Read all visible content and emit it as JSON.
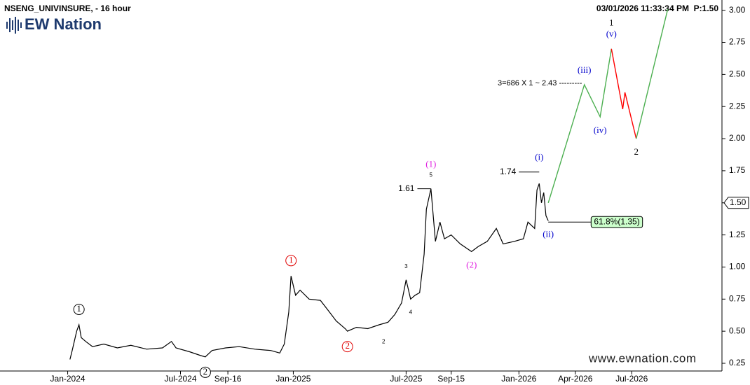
{
  "header": {
    "symbol": "NSENG_UNIVINSURE, - 16 hour",
    "timestamp": "03/01/2026 11:33:34 PM",
    "last": "P:1.50",
    "logo": "EW Nation",
    "website": "www.ewnation.com"
  },
  "chart_data": {
    "type": "line",
    "xlim": [
      2023.7,
      2026.9
    ],
    "xticks": [
      {
        "value": 2024.0,
        "label": "Jan-2024"
      },
      {
        "value": 2024.5,
        "label": "Jul-2024"
      },
      {
        "value": 2024.71,
        "label": "Sep-16"
      },
      {
        "value": 2025.0,
        "label": "Jan-2025"
      },
      {
        "value": 2025.5,
        "label": "Jul-2025"
      },
      {
        "value": 2025.7,
        "label": "Sep-15"
      },
      {
        "value": 2026.0,
        "label": "Jan-2026"
      },
      {
        "value": 2026.25,
        "label": "Apr-2026"
      },
      {
        "value": 2026.5,
        "label": "Jul-2026"
      }
    ],
    "ylim": [
      0.19,
      3.08
    ],
    "yticks": [
      0.25,
      {
        "value": 0.5,
        "label": "0.50"
      },
      0.75,
      {
        "value": 1,
        "label": "1.00"
      },
      1.25,
      {
        "value": 1.5,
        "label": "1.50"
      },
      1.75,
      {
        "value": 2,
        "label": "2.00"
      },
      2.25,
      {
        "value": 2.5,
        "label": "2.50"
      },
      2.75,
      {
        "value": 3,
        "label": "3.00"
      }
    ],
    "series": [
      {
        "color": "#000000",
        "x": [
          2024.01,
          2024.02,
          2024.04,
          2024.05,
          2024.06,
          2024.08,
          2024.11,
          2024.16,
          2024.22,
          2024.28,
          2024.35,
          2024.42,
          2024.46,
          2024.48,
          2024.54,
          2024.59,
          2024.61,
          2024.64,
          2024.7,
          2024.76,
          2024.83,
          2024.9,
          2024.94,
          2024.96,
          2024.98,
          2024.99,
          2025.01,
          2025.03,
          2025.07,
          2025.12,
          2025.16,
          2025.19,
          2025.23,
          2025.24,
          2025.28,
          2025.33,
          2025.38,
          2025.42,
          2025.45,
          2025.48,
          2025.5,
          2025.52,
          2025.54,
          2025.56,
          2025.58,
          2025.59,
          2025.61,
          2025.63,
          2025.65,
          2025.67,
          2025.7,
          2025.74,
          2025.79,
          2025.82,
          2025.86,
          2025.9,
          2025.93,
          2025.98,
          2026.02,
          2026.04,
          2026.07,
          2026.08,
          2026.09,
          2026.1,
          2026.11,
          2026.12,
          2026.13
        ],
        "values": [
          0.28,
          0.35,
          0.5,
          0.55,
          0.45,
          0.42,
          0.38,
          0.4,
          0.37,
          0.39,
          0.36,
          0.37,
          0.42,
          0.37,
          0.34,
          0.31,
          0.3,
          0.35,
          0.37,
          0.38,
          0.36,
          0.35,
          0.33,
          0.4,
          0.65,
          0.93,
          0.78,
          0.82,
          0.75,
          0.74,
          0.65,
          0.58,
          0.52,
          0.5,
          0.53,
          0.52,
          0.55,
          0.57,
          0.63,
          0.72,
          0.9,
          0.75,
          0.78,
          0.8,
          1.1,
          1.45,
          1.61,
          1.2,
          1.35,
          1.22,
          1.25,
          1.18,
          1.12,
          1.16,
          1.2,
          1.3,
          1.18,
          1.2,
          1.22,
          1.35,
          1.3,
          1.6,
          1.65,
          1.5,
          1.58,
          1.4,
          1.36
        ]
      },
      {
        "color": "#4caf50",
        "x": [
          2026.13,
          2026.29,
          2026.36,
          2026.41
        ],
        "values": [
          1.5,
          2.42,
          2.17,
          2.7
        ]
      },
      {
        "color": "#ff0000",
        "x": [
          2026.41,
          2026.46,
          2026.47,
          2026.52
        ],
        "values": [
          2.7,
          2.23,
          2.36,
          2.0
        ]
      },
      {
        "color": "#4caf50",
        "x": [
          2026.52,
          2026.66
        ],
        "values": [
          2.0,
          3.01
        ]
      }
    ],
    "last_price": {
      "value": 1.5,
      "label": "1.50"
    },
    "levels": [
      {
        "value": 1.61,
        "x": [
          2025.55,
          2025.61
        ]
      },
      {
        "value": 1.74,
        "x": [
          2026.0,
          2026.09
        ]
      },
      {
        "value": 1.35,
        "label": "61.8%(1.35)",
        "x": [
          2026.13,
          2026.32
        ]
      }
    ],
    "target": {
      "value": 2.43,
      "label": "3=686 X 1 ~ 2.43 ---------",
      "x": 2026.28
    },
    "annotations": [
      {
        "x": 2024.05,
        "y": 0.55,
        "place": "above",
        "labels": [
          {
            "text": "1",
            "color": "#000000",
            "style": "circle"
          }
        ]
      },
      {
        "x": 2024.61,
        "y": 0.3,
        "place": "below",
        "labels": [
          {
            "text": "2",
            "color": "#000000",
            "style": "circle"
          }
        ]
      },
      {
        "x": 2024.99,
        "y": 0.93,
        "place": "above",
        "labels": [
          {
            "text": "1",
            "color": "#e00000",
            "style": "circle"
          }
        ]
      },
      {
        "x": 2025.24,
        "y": 0.5,
        "place": "below",
        "labels": [
          {
            "text": "2",
            "color": "#e00000",
            "style": "circle"
          }
        ]
      },
      {
        "x": 2025.4,
        "y": 0.52,
        "place": "below",
        "labels": [
          {
            "text": "2",
            "color": "#000000",
            "style": "small"
          }
        ]
      },
      {
        "x": 2025.5,
        "y": 0.9,
        "place": "above",
        "labels": [
          {
            "text": "3",
            "color": "#000000",
            "style": "small"
          }
        ]
      },
      {
        "x": 2025.52,
        "y": 0.75,
        "place": "below",
        "labels": [
          {
            "text": "4",
            "color": "#000000",
            "style": "small"
          }
        ]
      },
      {
        "x": 2025.61,
        "y": 1.61,
        "place": "above",
        "labels": [
          {
            "text": "5",
            "color": "#000000",
            "style": "small"
          },
          {
            "text": "(1)",
            "color": "#e020e0",
            "style": "plain"
          }
        ]
      },
      {
        "x": 2025.79,
        "y": 1.12,
        "place": "below",
        "labels": [
          {
            "text": "(2)",
            "color": "#e020e0",
            "style": "plain"
          }
        ]
      },
      {
        "x": 2026.09,
        "y": 1.74,
        "place": "above",
        "labels": [
          {
            "text": "(i)",
            "color": "#0000cc",
            "style": "plain"
          }
        ]
      },
      {
        "x": 2026.13,
        "y": 1.36,
        "place": "below",
        "labels": [
          {
            "text": "(ii)",
            "color": "#0000cc",
            "style": "plain"
          }
        ]
      },
      {
        "x": 2026.29,
        "y": 2.42,
        "place": "above",
        "labels": [
          {
            "text": "(iii)",
            "color": "#0000cc",
            "style": "plain"
          }
        ]
      },
      {
        "x": 2026.36,
        "y": 2.17,
        "place": "below",
        "labels": [
          {
            "text": "(iv)",
            "color": "#0000cc",
            "style": "plain"
          }
        ]
      },
      {
        "x": 2026.41,
        "y": 2.7,
        "place": "above",
        "labels": [
          {
            "text": "(v)",
            "color": "#0000cc",
            "style": "plain"
          },
          {
            "text": "1",
            "color": "#000000",
            "style": "plain"
          }
        ]
      },
      {
        "x": 2026.52,
        "y": 2.0,
        "place": "below",
        "labels": [
          {
            "text": "2",
            "color": "#000000",
            "style": "plain"
          }
        ]
      }
    ]
  }
}
